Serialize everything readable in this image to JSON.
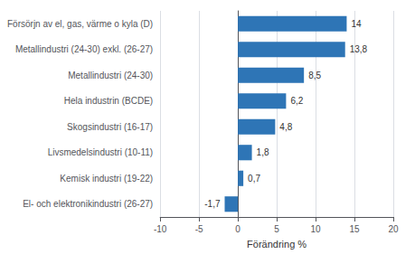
{
  "chart_data": {
    "type": "bar",
    "orientation": "horizontal",
    "categories": [
      "El- och elektronikindustri (26-27)",
      "Kemisk industri (19-22)",
      "Livsmedelsindustri (10-11)",
      "Skogsindustri (16-17)",
      "Hela industrin (BCDE)",
      "Metallindustri (24-30)",
      "Metallindustri (24-30) exkl. (26-27)",
      "Försörjn av el, gas, värme o kyla (D)"
    ],
    "values": [
      -1.7,
      0.7,
      1.8,
      4.8,
      6.2,
      8.5,
      13.8,
      14
    ],
    "value_labels": [
      "-1,7",
      "0,7",
      "1,8",
      "4,8",
      "6,2",
      "8,5",
      "13,8",
      "14"
    ],
    "data_labels": true,
    "color": "#2E75B6",
    "xlabel": "Förändring %",
    "xlim": [
      -10,
      20
    ],
    "xticks": [
      -10,
      -5,
      0,
      5,
      10,
      15,
      20
    ],
    "grid": true
  }
}
